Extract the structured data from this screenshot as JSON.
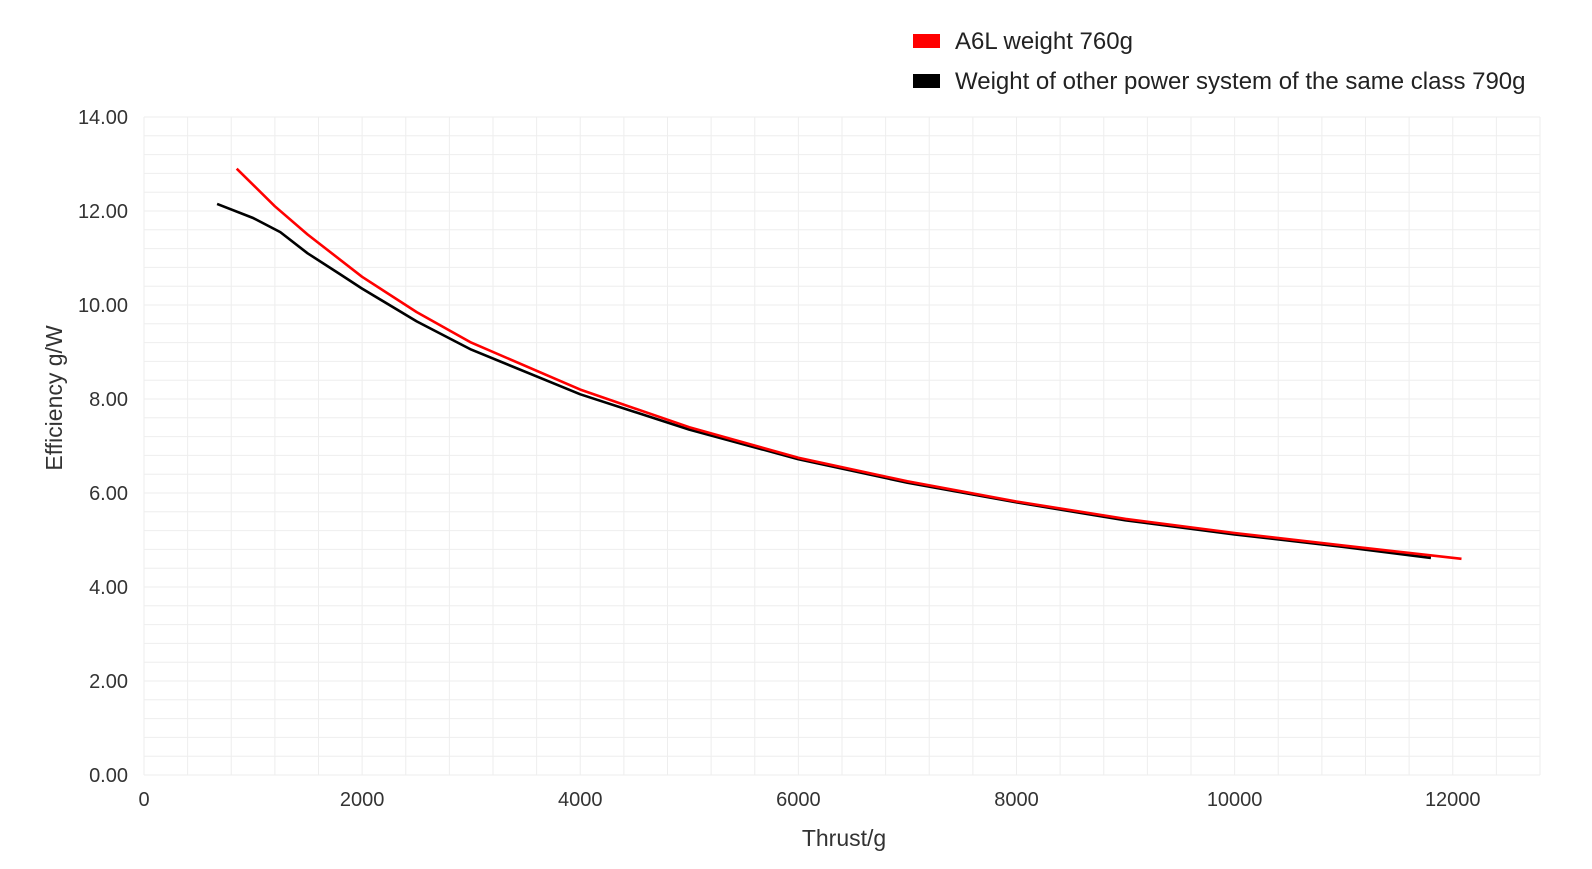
{
  "chart_data": {
    "type": "line",
    "title": "",
    "xlabel": "Thrust/g",
    "ylabel": "Efficiency g/W",
    "xlim": [
      0,
      12800
    ],
    "ylim": [
      0,
      14
    ],
    "x_ticks": [
      0,
      2000,
      4000,
      6000,
      8000,
      10000,
      12000
    ],
    "x_tick_labels": [
      "0",
      "2000",
      "4000",
      "6000",
      "8000",
      "10000",
      "12000"
    ],
    "y_ticks": [
      0,
      2,
      4,
      6,
      8,
      10,
      12,
      14
    ],
    "y_tick_labels": [
      "0.00",
      "2.00",
      "4.00",
      "6.00",
      "8.00",
      "10.00",
      "12.00",
      "14.00"
    ],
    "grid": true,
    "legend_position": "top-right",
    "series": [
      {
        "name": "A6L weight 760g",
        "color": "#ff0000",
        "points": [
          [
            850,
            12.9
          ],
          [
            1200,
            12.1
          ],
          [
            1500,
            11.5
          ],
          [
            2000,
            10.6
          ],
          [
            2500,
            9.85
          ],
          [
            3000,
            9.2
          ],
          [
            4000,
            8.2
          ],
          [
            5000,
            7.4
          ],
          [
            6000,
            6.75
          ],
          [
            7000,
            6.25
          ],
          [
            8000,
            5.82
          ],
          [
            9000,
            5.45
          ],
          [
            10000,
            5.15
          ],
          [
            11000,
            4.88
          ],
          [
            12080,
            4.6
          ]
        ]
      },
      {
        "name": "Weight of other power system of the same class 790g",
        "color": "#000000",
        "points": [
          [
            670,
            12.15
          ],
          [
            1000,
            11.85
          ],
          [
            1250,
            11.55
          ],
          [
            1500,
            11.1
          ],
          [
            1800,
            10.65
          ],
          [
            2000,
            10.35
          ],
          [
            2500,
            9.65
          ],
          [
            3000,
            9.05
          ],
          [
            4000,
            8.1
          ],
          [
            5000,
            7.35
          ],
          [
            6000,
            6.72
          ],
          [
            7000,
            6.22
          ],
          [
            8000,
            5.8
          ],
          [
            9000,
            5.42
          ],
          [
            10000,
            5.12
          ],
          [
            11000,
            4.85
          ],
          [
            11800,
            4.62
          ]
        ]
      }
    ]
  }
}
